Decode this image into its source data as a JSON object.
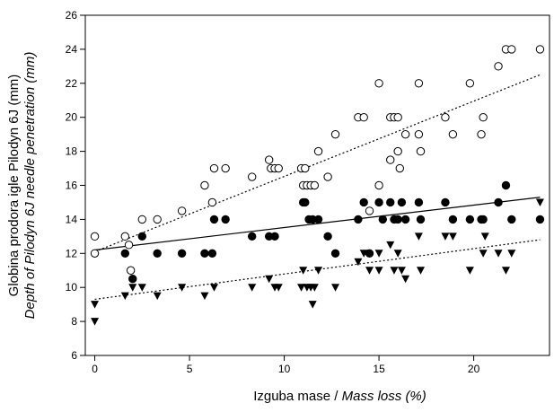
{
  "chart_data": {
    "type": "scatter",
    "xlabel": {
      "plain": "Izguba mase / ",
      "italic": "Mass loss (%)"
    },
    "ylabel": {
      "line1": "Globina prodora igle Pilodyn 6J (mm)",
      "line2": "Depth of Pilodyn 6J needle penetration (mm)"
    },
    "xlim": [
      -0.5,
      24
    ],
    "ylim": [
      6,
      26
    ],
    "xticks": [
      0,
      5,
      10,
      15,
      20
    ],
    "yticks": [
      6,
      8,
      10,
      12,
      14,
      16,
      18,
      20,
      22,
      24,
      26
    ],
    "grid": false,
    "series": [
      {
        "marker": "open-circle",
        "color": "#000000",
        "fit": {
          "style": "dotted",
          "from": [
            0,
            12.1
          ],
          "to": [
            23.5,
            22.5
          ]
        },
        "points": [
          [
            0,
            13
          ],
          [
            0,
            12
          ],
          [
            1.6,
            13
          ],
          [
            1.8,
            12.5
          ],
          [
            1.9,
            11
          ],
          [
            2.5,
            14
          ],
          [
            3.3,
            14
          ],
          [
            4.6,
            14.5
          ],
          [
            5.8,
            16
          ],
          [
            6.2,
            15
          ],
          [
            6.3,
            17
          ],
          [
            6.9,
            17
          ],
          [
            8.3,
            16.5
          ],
          [
            9.2,
            17.5
          ],
          [
            9.3,
            17
          ],
          [
            9.5,
            17
          ],
          [
            9.7,
            17
          ],
          [
            10.9,
            17
          ],
          [
            11.0,
            16
          ],
          [
            11.1,
            17
          ],
          [
            11.2,
            16
          ],
          [
            11.4,
            16
          ],
          [
            11.6,
            16
          ],
          [
            11.8,
            18
          ],
          [
            12.3,
            16.5
          ],
          [
            12.7,
            19
          ],
          [
            13.9,
            20
          ],
          [
            14.2,
            20
          ],
          [
            14.5,
            14.5
          ],
          [
            15.0,
            22
          ],
          [
            15.0,
            16
          ],
          [
            15.6,
            17.5
          ],
          [
            15.6,
            20
          ],
          [
            15.8,
            20
          ],
          [
            16.0,
            20
          ],
          [
            16.0,
            18
          ],
          [
            16.1,
            17
          ],
          [
            16.4,
            19
          ],
          [
            17.1,
            22
          ],
          [
            17.1,
            19
          ],
          [
            17.2,
            18
          ],
          [
            18.5,
            20
          ],
          [
            18.9,
            19
          ],
          [
            19.8,
            22
          ],
          [
            20.4,
            19
          ],
          [
            20.5,
            20
          ],
          [
            21.3,
            23
          ],
          [
            21.7,
            24
          ],
          [
            22.0,
            24
          ],
          [
            23.5,
            24
          ]
        ]
      },
      {
        "marker": "filled-circle",
        "color": "#000000",
        "fit": {
          "style": "solid",
          "from": [
            0,
            12.2
          ],
          "to": [
            23.5,
            15.3
          ]
        },
        "points": [
          [
            1.6,
            12
          ],
          [
            2.0,
            10.5
          ],
          [
            2.5,
            13
          ],
          [
            3.3,
            12
          ],
          [
            4.6,
            12
          ],
          [
            5.8,
            12
          ],
          [
            6.2,
            12
          ],
          [
            6.3,
            14
          ],
          [
            6.9,
            14
          ],
          [
            8.3,
            13
          ],
          [
            9.2,
            13
          ],
          [
            9.5,
            13
          ],
          [
            11.0,
            15
          ],
          [
            11.1,
            15
          ],
          [
            11.3,
            14
          ],
          [
            11.5,
            14
          ],
          [
            11.8,
            14
          ],
          [
            12.3,
            13
          ],
          [
            12.7,
            12
          ],
          [
            13.9,
            14
          ],
          [
            14.2,
            15
          ],
          [
            14.5,
            12
          ],
          [
            15.0,
            15
          ],
          [
            15.2,
            14
          ],
          [
            15.6,
            15
          ],
          [
            15.8,
            14
          ],
          [
            16.0,
            14
          ],
          [
            16.2,
            15
          ],
          [
            16.4,
            14
          ],
          [
            17.1,
            15
          ],
          [
            17.2,
            14
          ],
          [
            18.5,
            15
          ],
          [
            18.9,
            14
          ],
          [
            19.8,
            14
          ],
          [
            20.4,
            14
          ],
          [
            20.5,
            14
          ],
          [
            21.3,
            15
          ],
          [
            21.7,
            16
          ],
          [
            22.0,
            14
          ],
          [
            23.5,
            14
          ]
        ]
      },
      {
        "marker": "filled-triangle-down",
        "color": "#000000",
        "fit": {
          "style": "dotted",
          "from": [
            0,
            9.3
          ],
          "to": [
            23.5,
            12.8
          ]
        },
        "points": [
          [
            0,
            9
          ],
          [
            0,
            8
          ],
          [
            1.6,
            9.5
          ],
          [
            2.0,
            10
          ],
          [
            2.5,
            10
          ],
          [
            3.3,
            9.5
          ],
          [
            4.6,
            10
          ],
          [
            5.8,
            9.5
          ],
          [
            6.3,
            10
          ],
          [
            8.3,
            10
          ],
          [
            9.2,
            10.5
          ],
          [
            9.5,
            10
          ],
          [
            9.7,
            10
          ],
          [
            10.9,
            10
          ],
          [
            11.0,
            11
          ],
          [
            11.2,
            10
          ],
          [
            11.4,
            10
          ],
          [
            11.5,
            9
          ],
          [
            11.6,
            10
          ],
          [
            11.8,
            11
          ],
          [
            12.7,
            10
          ],
          [
            13.9,
            11.5
          ],
          [
            14.2,
            12
          ],
          [
            14.5,
            11
          ],
          [
            15.0,
            11
          ],
          [
            15.0,
            12
          ],
          [
            15.6,
            12.5
          ],
          [
            15.8,
            11
          ],
          [
            16.0,
            12
          ],
          [
            16.2,
            11
          ],
          [
            16.4,
            10.5
          ],
          [
            17.1,
            13
          ],
          [
            17.2,
            11
          ],
          [
            18.5,
            13
          ],
          [
            18.9,
            13
          ],
          [
            19.8,
            11
          ],
          [
            20.5,
            12
          ],
          [
            20.6,
            13
          ],
          [
            21.3,
            12
          ],
          [
            21.7,
            11
          ],
          [
            22.0,
            12
          ],
          [
            23.5,
            15
          ]
        ]
      }
    ]
  }
}
